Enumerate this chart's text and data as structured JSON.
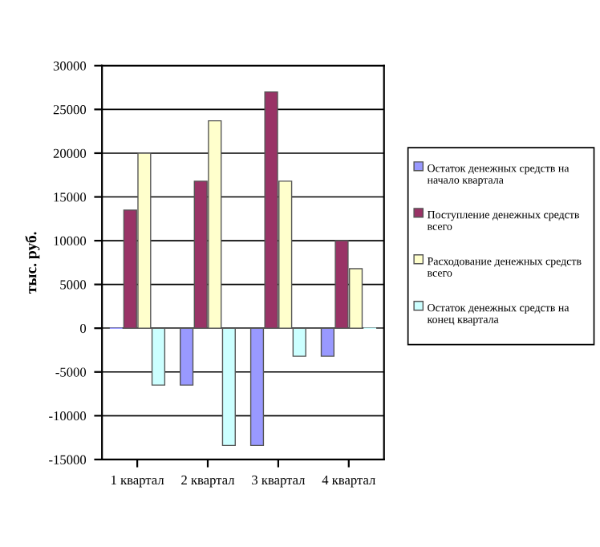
{
  "chart_data": {
    "type": "bar",
    "ylabel": "тыс. руб.",
    "categories": [
      "1 квартал",
      "2 квартал",
      "3 квартал",
      "4 квартал"
    ],
    "series": [
      {
        "name": "Остаток денежных средств на начало квартала",
        "color": "#9999ff",
        "values": [
          0,
          -6500,
          -13400,
          -3200
        ]
      },
      {
        "name": "Поступление денежных средств всего",
        "color": "#993366",
        "values": [
          13500,
          16800,
          27000,
          10000
        ]
      },
      {
        "name": "Расходование денежных средств всего",
        "color": "#ffffcc",
        "values": [
          20000,
          23700,
          16800,
          6800
        ]
      },
      {
        "name": "Остаток денежных средств на конец квартала",
        "color": "#ccffff",
        "values": [
          -6500,
          -13400,
          -3200,
          0
        ]
      }
    ],
    "ylim": [
      -15000,
      30000
    ],
    "yticks": [
      -15000,
      -10000,
      -5000,
      0,
      5000,
      10000,
      15000,
      20000,
      25000,
      30000
    ],
    "grid": "y",
    "legend": "right"
  }
}
